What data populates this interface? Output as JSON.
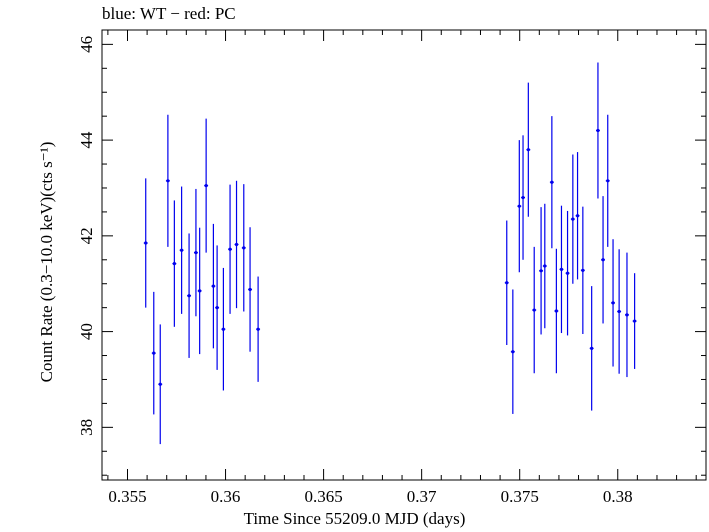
{
  "chart_data": {
    "type": "scatter",
    "title": "blue: WT − red: PC",
    "xlabel": "Time Since 55209.0 MJD (days)",
    "ylabel": "Count Rate (0.3−10.0 keV)(cts s⁻¹)",
    "xlim": [
      0.3537,
      0.3845
    ],
    "ylim": [
      36.9,
      46.3
    ],
    "x_ticks": [
      0.355,
      0.36,
      0.365,
      0.37,
      0.375,
      0.38
    ],
    "x_tick_labels": [
      "0.355",
      "0.36",
      "0.365",
      "0.37",
      "0.375",
      "0.38"
    ],
    "y_ticks": [
      38,
      40,
      42,
      44,
      46
    ],
    "y_tick_labels": [
      "38",
      "40",
      "42",
      "44",
      "46"
    ],
    "grid": false,
    "colors": {
      "WT": "#0000ee",
      "axis": "#000000"
    },
    "series": [
      {
        "name": "WT",
        "x_err": 0.0001,
        "points": [
          {
            "x": 0.35593,
            "y": 41.85,
            "err": 1.35
          },
          {
            "x": 0.35634,
            "y": 39.55,
            "err": 1.28
          },
          {
            "x": 0.35667,
            "y": 38.9,
            "err": 1.25
          },
          {
            "x": 0.35706,
            "y": 43.15,
            "err": 1.38
          },
          {
            "x": 0.35739,
            "y": 41.42,
            "err": 1.32
          },
          {
            "x": 0.35776,
            "y": 41.7,
            "err": 1.33
          },
          {
            "x": 0.35814,
            "y": 40.75,
            "err": 1.3
          },
          {
            "x": 0.35849,
            "y": 41.65,
            "err": 1.33
          },
          {
            "x": 0.35868,
            "y": 40.85,
            "err": 1.32
          },
          {
            "x": 0.35901,
            "y": 43.05,
            "err": 1.4
          },
          {
            "x": 0.35938,
            "y": 40.95,
            "err": 1.3
          },
          {
            "x": 0.35957,
            "y": 40.5,
            "err": 1.3
          },
          {
            "x": 0.35989,
            "y": 40.05,
            "err": 1.28
          },
          {
            "x": 0.36023,
            "y": 41.72,
            "err": 1.35
          },
          {
            "x": 0.36056,
            "y": 41.82,
            "err": 1.33
          },
          {
            "x": 0.36093,
            "y": 41.75,
            "err": 1.33
          },
          {
            "x": 0.36125,
            "y": 40.88,
            "err": 1.3
          },
          {
            "x": 0.36166,
            "y": 40.05,
            "err": 1.1
          },
          {
            "x": 0.37434,
            "y": 41.02,
            "err": 1.3
          },
          {
            "x": 0.37465,
            "y": 39.58,
            "err": 1.3
          },
          {
            "x": 0.37498,
            "y": 42.62,
            "err": 1.38
          },
          {
            "x": 0.37517,
            "y": 42.8,
            "err": 1.3
          },
          {
            "x": 0.37544,
            "y": 43.8,
            "err": 1.4
          },
          {
            "x": 0.37574,
            "y": 40.45,
            "err": 1.32
          },
          {
            "x": 0.37609,
            "y": 41.27,
            "err": 1.33
          },
          {
            "x": 0.37628,
            "y": 41.37,
            "err": 1.3
          },
          {
            "x": 0.37664,
            "y": 43.12,
            "err": 1.38
          },
          {
            "x": 0.37687,
            "y": 40.43,
            "err": 1.3
          },
          {
            "x": 0.37713,
            "y": 41.3,
            "err": 1.33
          },
          {
            "x": 0.37744,
            "y": 41.22,
            "err": 1.3
          },
          {
            "x": 0.37771,
            "y": 42.35,
            "err": 1.35
          },
          {
            "x": 0.37795,
            "y": 42.42,
            "err": 1.33
          },
          {
            "x": 0.37822,
            "y": 41.28,
            "err": 1.33
          },
          {
            "x": 0.37867,
            "y": 39.65,
            "err": 1.3
          },
          {
            "x": 0.37899,
            "y": 44.2,
            "err": 1.42
          },
          {
            "x": 0.37925,
            "y": 41.5,
            "err": 1.33
          },
          {
            "x": 0.37949,
            "y": 43.15,
            "err": 1.38
          },
          {
            "x": 0.37976,
            "y": 40.6,
            "err": 1.33
          },
          {
            "x": 0.38007,
            "y": 40.42,
            "err": 1.3
          },
          {
            "x": 0.38047,
            "y": 40.35,
            "err": 1.3
          },
          {
            "x": 0.38086,
            "y": 40.22,
            "err": 1.0
          }
        ]
      }
    ]
  }
}
